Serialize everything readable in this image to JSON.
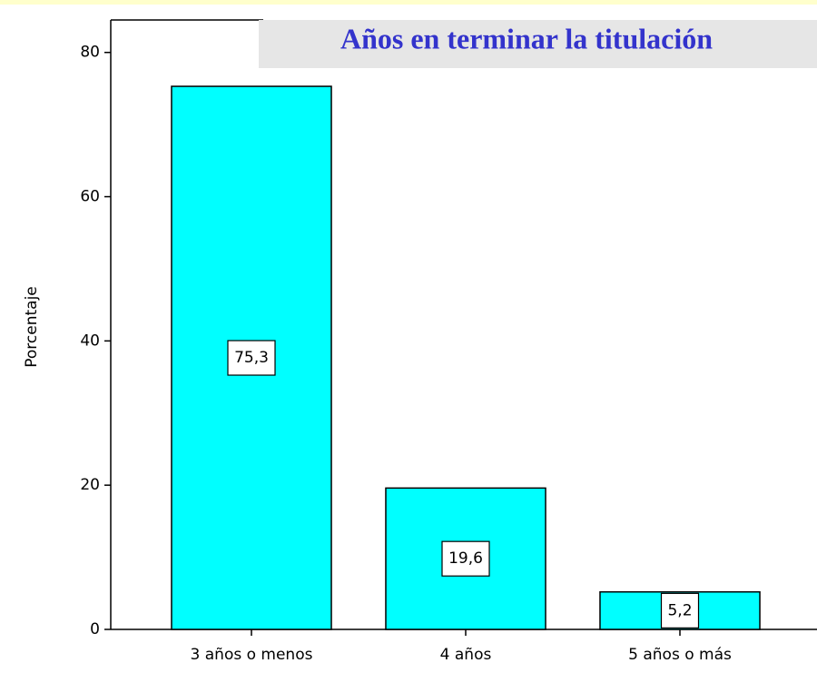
{
  "chart_data": {
    "type": "bar",
    "title": "Años en terminar la titulación",
    "y_label": "Porcentaje",
    "categories": [
      "3 años o menos",
      "4 años",
      "5 años o más"
    ],
    "values": [
      75.3,
      19.6,
      5.2
    ],
    "value_labels": [
      "75,3",
      "19,6",
      "5,2"
    ],
    "color": "#00ffff",
    "ylim": [
      0,
      84.5
    ],
    "yticks": [
      0,
      20,
      40,
      60,
      80
    ],
    "grid": false
  }
}
